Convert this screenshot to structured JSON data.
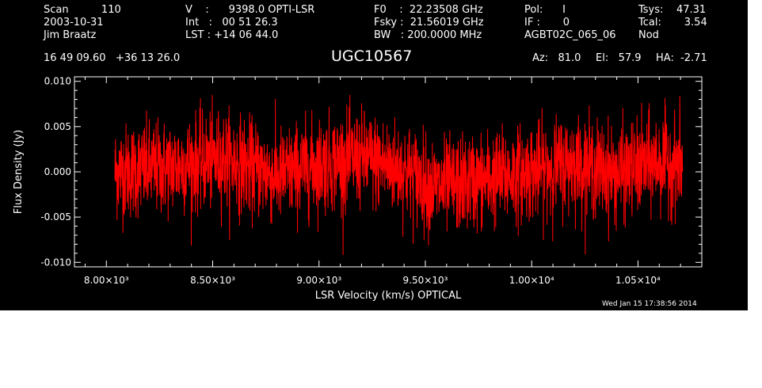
{
  "header": {
    "scan": "Scan          110",
    "date": "2003-10-31",
    "observer": "Jim Braatz",
    "velocity": "V    :      9398.0 OPTI-LSR",
    "integration": "Int   :   00 51 26.3",
    "lst": "LST : +14 06 44.0",
    "f0": "F0    :  22.23508 GHz",
    "fsky": "Fsky :  21.56019 GHz",
    "bw": "BW   : 200.0000 MHz",
    "pol": "Pol:      I",
    "if": "IF :       0",
    "project": "AGBT02C_065_06",
    "tsys": "Tsys:    47.31",
    "tcal": "Tcal:       3.54",
    "procedure": "Nod",
    "coords": "16 49 09.60   +36 13 26.0",
    "az": "Az:   81.0",
    "el": "El:   57.9",
    "ha": "HA:  -2.71"
  },
  "timestamp": "Wed Jan 15 17:38:56 2014",
  "colors": {
    "background": "#000000",
    "axes": "#ffffff",
    "trace": "#ff0000"
  },
  "chart_data": {
    "type": "line",
    "title": "UGC10567",
    "xlabel": "LSR Velocity (km/s) OPTICAL",
    "ylabel": "Flux Density (Jy)",
    "xlim": [
      7850,
      10800
    ],
    "ylim": [
      -0.0105,
      0.0105
    ],
    "xticks": [
      {
        "value": 8000,
        "label": "8.00×10³"
      },
      {
        "value": 8500,
        "label": "8.50×10³"
      },
      {
        "value": 9000,
        "label": "9.00×10³"
      },
      {
        "value": 9500,
        "label": "9.50×10³"
      },
      {
        "value": 10000,
        "label": "1.00×10⁴"
      },
      {
        "value": 10500,
        "label": "1.05×10⁴"
      }
    ],
    "yticks": [
      {
        "value": 0.01,
        "label": "0.010"
      },
      {
        "value": 0.005,
        "label": "0.005"
      },
      {
        "value": 0.0,
        "label": "0.000"
      },
      {
        "value": -0.005,
        "label": "-0.005"
      },
      {
        "value": -0.01,
        "label": "-0.010"
      }
    ],
    "series": [
      {
        "x_start": 8040,
        "x_end": 10710,
        "noise_rms": 0.0026,
        "baseline": [
          {
            "x": 8040,
            "y": 0.0
          },
          {
            "x": 8300,
            "y": 0.0005
          },
          {
            "x": 8550,
            "y": 0.0015
          },
          {
            "x": 8800,
            "y": -0.0005
          },
          {
            "x": 9000,
            "y": 0.0008
          },
          {
            "x": 9200,
            "y": 0.0015
          },
          {
            "x": 9400,
            "y": 0.0002
          },
          {
            "x": 9550,
            "y": -0.0018
          },
          {
            "x": 9800,
            "y": -0.0008
          },
          {
            "x": 10000,
            "y": 0.0
          },
          {
            "x": 10200,
            "y": 0.001
          },
          {
            "x": 10400,
            "y": -0.0003
          },
          {
            "x": 10600,
            "y": 0.0012
          },
          {
            "x": 10710,
            "y": 0.0008
          }
        ]
      }
    ]
  }
}
